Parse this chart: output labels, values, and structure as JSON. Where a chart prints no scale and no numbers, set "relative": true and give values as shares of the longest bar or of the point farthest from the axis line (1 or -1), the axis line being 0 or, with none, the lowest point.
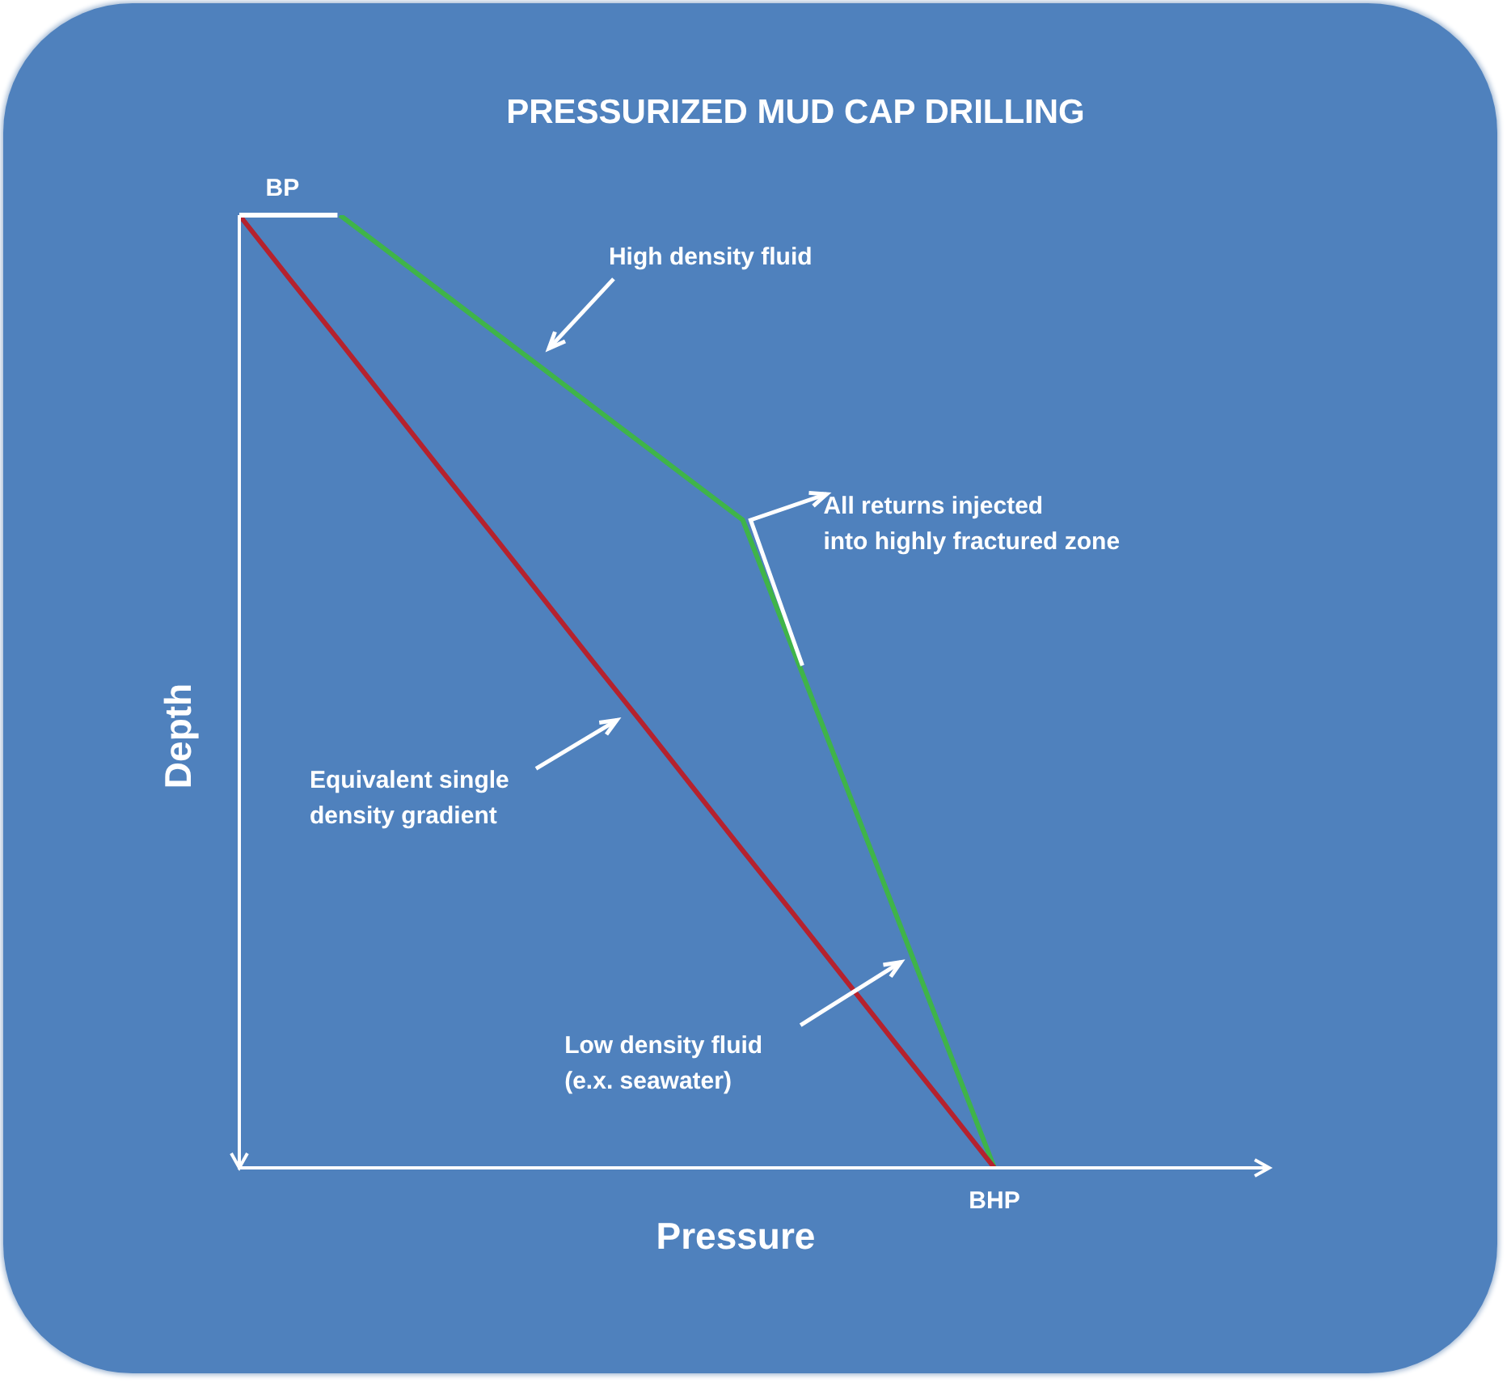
{
  "chart_data": {
    "type": "line",
    "title": "PRESSURIZED MUD CAP DRILLING",
    "xlabel": "Pressure",
    "ylabel": "Depth",
    "relative": true,
    "categories": [
      null,
      null,
      null,
      null,
      null,
      null,
      null,
      null,
      null,
      null,
      null,
      null,
      null,
      null,
      null,
      null
    ],
    "marker": "none",
    "series": [
      {
        "color": "#b5222e",
        "values": [
          1,
          0.933,
          0.867,
          0.8,
          0.733,
          0.667,
          0.6,
          0.533,
          0.467,
          0.4,
          0.333,
          0.267,
          0.2,
          0.133,
          0.067,
          0
        ]
      },
      {
        "color": "#3fb449",
        "values": [
          null,
          null,
          1,
          0.96,
          0.92,
          0.88,
          0.84,
          0.8,
          0.76,
          0.72,
          0.68,
          0.544,
          0.408,
          0.272,
          0.136,
          0
        ]
      }
    ],
    "annotations": [
      "BP",
      "BHP",
      "High density fluid",
      "All returns injected\ninto highly fractured zone",
      "Equivalent single\ndensity gradient",
      "Low density fluid\n(e.x. seawater)"
    ]
  }
}
